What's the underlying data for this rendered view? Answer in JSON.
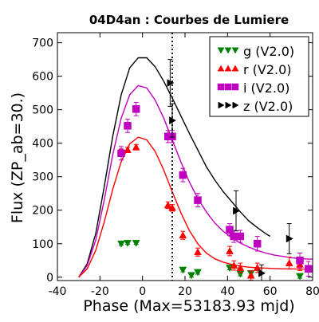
{
  "chart_data": {
    "type": "scatter",
    "title": "04D4an : Courbes de Lumiere",
    "xlabel": "Phase (Max=53183.93 mjd)",
    "ylabel": "Flux (ZP_ab=30.)",
    "xlim": [
      -40,
      80
    ],
    "ylim": [
      -10,
      730
    ],
    "xticks": [
      "-40",
      "-20",
      "0",
      "20",
      "40",
      "60",
      "80"
    ],
    "yticks": [
      "0",
      "100",
      "200",
      "300",
      "400",
      "500",
      "600",
      "700"
    ],
    "xtick_values": [
      -40,
      -20,
      0,
      20,
      40,
      60,
      80
    ],
    "ytick_values": [
      0,
      100,
      200,
      300,
      400,
      500,
      600,
      700
    ],
    "grid": false,
    "legend_position": "top-right",
    "vline_x": 14,
    "colors": {
      "g": "#008000",
      "r": "#ff0000",
      "i": "#bf00bf",
      "z": "#000000"
    },
    "series": [
      {
        "name": "g (V2.0)",
        "band": "g",
        "marker": "triangle-down",
        "color": "#008000",
        "points": [
          {
            "x": -10,
            "y": 100,
            "err": 4
          },
          {
            "x": -7,
            "y": 102,
            "err": 4
          },
          {
            "x": -3,
            "y": 102,
            "err": 4
          },
          {
            "x": 19,
            "y": 22,
            "err": 6
          },
          {
            "x": 23,
            "y": 6,
            "err": 6
          },
          {
            "x": 26,
            "y": 15,
            "err": 6
          },
          {
            "x": 41,
            "y": 28,
            "err": 6
          },
          {
            "x": 46,
            "y": 10,
            "err": 6
          },
          {
            "x": 51,
            "y": 12,
            "err": 6
          },
          {
            "x": 74,
            "y": 3,
            "err": 6
          }
        ]
      },
      {
        "name": "r (V2.0)",
        "band": "r",
        "marker": "triangle-up",
        "color": "#ff0000",
        "points": [
          {
            "x": -10,
            "y": 375,
            "err": 8
          },
          {
            "x": -7,
            "y": 380,
            "err": 8
          },
          {
            "x": -3,
            "y": 388,
            "err": 8
          },
          {
            "x": 12,
            "y": 215,
            "err": 10
          },
          {
            "x": 14,
            "y": 207,
            "err": 10
          },
          {
            "x": 19,
            "y": 125,
            "err": 12
          },
          {
            "x": 26,
            "y": 75,
            "err": 12
          },
          {
            "x": 41,
            "y": 78,
            "err": 14
          },
          {
            "x": 43,
            "y": 35,
            "err": 14
          },
          {
            "x": 46,
            "y": 28,
            "err": 14
          },
          {
            "x": 51,
            "y": 5,
            "err": 14
          },
          {
            "x": 54,
            "y": 28,
            "err": 14
          },
          {
            "x": 69,
            "y": 42,
            "err": 18
          },
          {
            "x": 74,
            "y": 38,
            "err": 18
          }
        ]
      },
      {
        "name": "i (V2.0)",
        "band": "i",
        "marker": "square",
        "color": "#bf00bf",
        "points": [
          {
            "x": -10,
            "y": 370,
            "err": 20
          },
          {
            "x": -7,
            "y": 452,
            "err": 20
          },
          {
            "x": -3,
            "y": 502,
            "err": 20
          },
          {
            "x": 12,
            "y": 420,
            "err": 18
          },
          {
            "x": 14,
            "y": 420,
            "err": 18
          },
          {
            "x": 19,
            "y": 305,
            "err": 20
          },
          {
            "x": 26,
            "y": 230,
            "err": 20
          },
          {
            "x": 41,
            "y": 142,
            "err": 18
          },
          {
            "x": 43,
            "y": 122,
            "err": 18
          },
          {
            "x": 46,
            "y": 122,
            "err": 18
          },
          {
            "x": 54,
            "y": 100,
            "err": 22
          },
          {
            "x": 74,
            "y": 50,
            "err": 22
          },
          {
            "x": 78,
            "y": 25,
            "err": 22
          }
        ]
      },
      {
        "name": "z (V2.0)",
        "band": "z",
        "marker": "triangle-right",
        "color": "#000000",
        "points": [
          {
            "x": 13,
            "y": 580,
            "err": 70
          },
          {
            "x": 14,
            "y": 468,
            "err": 50
          },
          {
            "x": 44,
            "y": 198,
            "err": 60
          },
          {
            "x": 56,
            "y": 12,
            "err": 25
          },
          {
            "x": 69,
            "y": 115,
            "err": 45
          }
        ]
      }
    ],
    "models": [
      {
        "band": "z",
        "color": "#000000",
        "x": [
          -30,
          -26,
          -22,
          -18,
          -14,
          -10,
          -6,
          -2,
          2,
          6,
          10,
          14,
          18,
          22,
          26,
          30,
          34,
          38,
          42,
          46,
          50,
          54,
          58,
          60
        ],
        "y": [
          0,
          40,
          130,
          270,
          420,
          545,
          625,
          655,
          655,
          628,
          585,
          535,
          482,
          430,
          380,
          330,
          290,
          255,
          225,
          195,
          168,
          148,
          130,
          122
        ]
      },
      {
        "band": "i",
        "color": "#bf00bf",
        "x": [
          -30,
          -26,
          -22,
          -18,
          -14,
          -10,
          -6,
          -2,
          2,
          6,
          10,
          14,
          18,
          22,
          26,
          30,
          34,
          38,
          42,
          46,
          50,
          54,
          58,
          62,
          66,
          70,
          74,
          78,
          80
        ],
        "y": [
          0,
          35,
          110,
          230,
          365,
          475,
          545,
          572,
          565,
          528,
          475,
          410,
          345,
          285,
          235,
          195,
          162,
          137,
          117,
          102,
          90,
          80,
          72,
          66,
          62,
          58,
          56,
          54,
          54
        ]
      },
      {
        "band": "r",
        "color": "#ff0000",
        "x": [
          -30,
          -26,
          -22,
          -18,
          -14,
          -10,
          -6,
          -2,
          2,
          6,
          10,
          14,
          18,
          22,
          26,
          30,
          34,
          38,
          42,
          46,
          50,
          54,
          58,
          62,
          66,
          70,
          74,
          78,
          80
        ],
        "y": [
          0,
          25,
          80,
          165,
          262,
          345,
          398,
          418,
          410,
          375,
          320,
          255,
          193,
          140,
          100,
          72,
          55,
          45,
          38,
          33,
          30,
          28,
          27,
          26,
          25,
          25,
          24,
          24,
          24
        ]
      }
    ]
  }
}
